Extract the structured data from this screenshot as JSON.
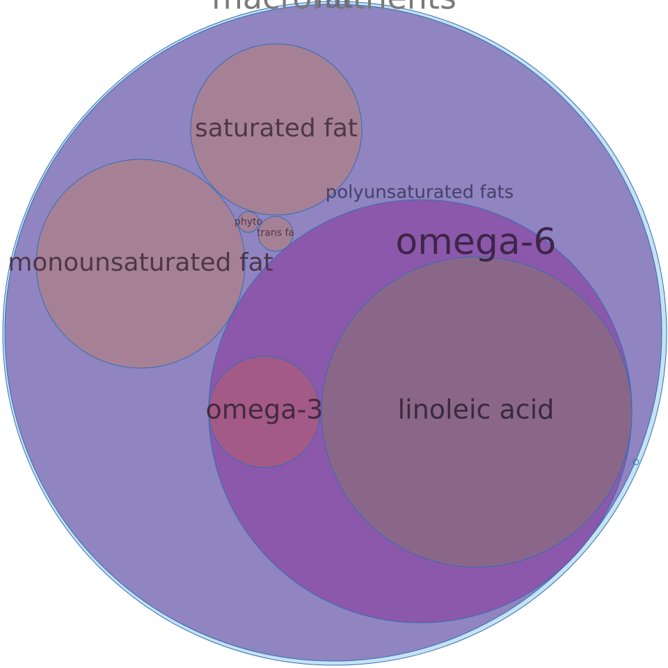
{
  "diagram": {
    "macronutrients_label": "macronutrients",
    "fat_label": "fat",
    "polyunsaturated_label": "polyunsaturated fats",
    "omega6_label": "omega-6",
    "linoleic_label": "linoleic acid",
    "omega3_label": "omega-3",
    "saturated_label": "saturated fat",
    "monounsaturated_label": "monounsaturated fat",
    "phyto_label": "phyto",
    "trans_label": "trans fa",
    "colors": {
      "outer_fill": "#c6e2f3",
      "fat_fill": "#9085c0",
      "poly_fill": "#8c58ab",
      "linoleic_fill": "#8a6788",
      "omega3_fill": "#a35a87",
      "brownish_fill": "#a68196",
      "stroke": "#2f6db5"
    }
  }
}
